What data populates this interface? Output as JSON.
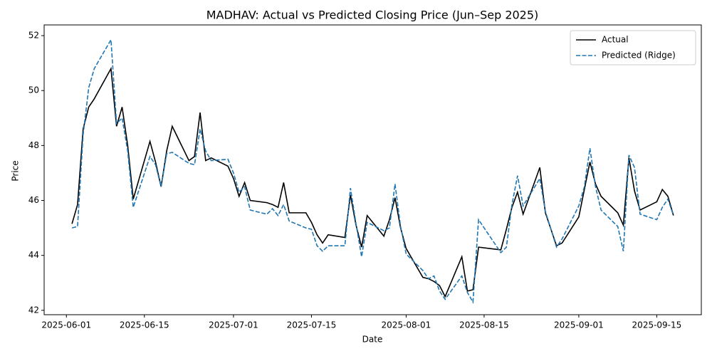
{
  "chart_data": {
    "type": "line",
    "title": "MADHAV: Actual vs Predicted Closing Price (Jun–Sep 2025)",
    "xlabel": "Date",
    "ylabel": "Price",
    "x": [
      "2025-06-02",
      "2025-06-03",
      "2025-06-04",
      "2025-06-05",
      "2025-06-06",
      "2025-06-09",
      "2025-06-10",
      "2025-06-11",
      "2025-06-12",
      "2025-06-13",
      "2025-06-16",
      "2025-06-17",
      "2025-06-18",
      "2025-06-19",
      "2025-06-20",
      "2025-06-23",
      "2025-06-24",
      "2025-06-25",
      "2025-06-26",
      "2025-06-27",
      "2025-06-30",
      "2025-07-01",
      "2025-07-02",
      "2025-07-03",
      "2025-07-04",
      "2025-07-07",
      "2025-07-08",
      "2025-07-09",
      "2025-07-10",
      "2025-07-11",
      "2025-07-14",
      "2025-07-15",
      "2025-07-16",
      "2025-07-17",
      "2025-07-18",
      "2025-07-21",
      "2025-07-22",
      "2025-07-23",
      "2025-07-24",
      "2025-07-25",
      "2025-07-28",
      "2025-07-29",
      "2025-07-30",
      "2025-07-31",
      "2025-08-01",
      "2025-08-04",
      "2025-08-05",
      "2025-08-06",
      "2025-08-07",
      "2025-08-08",
      "2025-08-11",
      "2025-08-12",
      "2025-08-13",
      "2025-08-14",
      "2025-08-18",
      "2025-08-19",
      "2025-08-20",
      "2025-08-21",
      "2025-08-22",
      "2025-08-25",
      "2025-08-26",
      "2025-08-28",
      "2025-08-29",
      "2025-09-01",
      "2025-09-02",
      "2025-09-03",
      "2025-09-04",
      "2025-09-05",
      "2025-09-08",
      "2025-09-09",
      "2025-09-10",
      "2025-09-11",
      "2025-09-12",
      "2025-09-15",
      "2025-09-16",
      "2025-09-17",
      "2025-09-18"
    ],
    "series": [
      {
        "name": "Actual",
        "color": "#000000",
        "dash": false,
        "values": [
          45.15,
          45.85,
          48.6,
          49.4,
          49.7,
          50.8,
          48.7,
          49.4,
          48.0,
          46.05,
          48.15,
          47.4,
          46.5,
          47.8,
          48.7,
          47.45,
          47.6,
          49.2,
          47.45,
          47.55,
          47.25,
          46.8,
          46.15,
          46.65,
          46.0,
          45.92,
          45.85,
          45.75,
          46.65,
          45.55,
          45.55,
          45.2,
          44.75,
          44.45,
          44.75,
          44.65,
          46.2,
          45.1,
          44.3,
          45.45,
          44.7,
          45.3,
          46.1,
          45.0,
          44.25,
          43.2,
          43.15,
          43.05,
          42.9,
          42.5,
          43.95,
          42.7,
          42.75,
          44.3,
          44.2,
          44.95,
          45.75,
          46.3,
          45.5,
          47.2,
          45.55,
          44.35,
          44.45,
          45.4,
          46.4,
          47.4,
          46.6,
          46.15,
          45.55,
          45.1,
          47.55,
          46.35,
          45.65,
          45.95,
          46.4,
          46.15,
          45.45
        ]
      },
      {
        "name": "Predicted (Ridge)",
        "color": "#1f77b4",
        "dash": true,
        "values": [
          45.0,
          45.05,
          48.4,
          50.1,
          50.8,
          51.85,
          48.8,
          49.0,
          47.8,
          45.75,
          47.6,
          47.3,
          46.5,
          47.7,
          47.75,
          47.35,
          47.3,
          48.6,
          47.8,
          47.45,
          47.5,
          47.0,
          46.3,
          46.5,
          45.65,
          45.5,
          45.7,
          45.45,
          45.85,
          45.25,
          45.0,
          44.95,
          44.35,
          44.15,
          44.35,
          44.35,
          46.45,
          45.15,
          43.95,
          45.2,
          44.9,
          45.0,
          46.6,
          45.05,
          44.05,
          43.45,
          43.15,
          43.25,
          42.7,
          42.4,
          43.25,
          42.65,
          42.3,
          45.3,
          44.1,
          44.3,
          45.85,
          46.9,
          45.8,
          46.8,
          45.6,
          44.3,
          44.6,
          45.8,
          46.5,
          47.9,
          46.5,
          45.65,
          45.05,
          44.15,
          47.65,
          47.2,
          45.5,
          45.3,
          45.75,
          46.05,
          45.45
        ]
      }
    ],
    "xlim": [
      "2025-05-28",
      "2025-09-23"
    ],
    "xticks": [
      "2025-06-01",
      "2025-06-15",
      "2025-07-01",
      "2025-07-15",
      "2025-08-01",
      "2025-08-15",
      "2025-09-01",
      "2025-09-15"
    ],
    "ylim": [
      41.84,
      52.39
    ],
    "yticks": [
      42,
      44,
      46,
      48,
      50,
      52
    ],
    "legend": "upper right",
    "grid": false
  }
}
